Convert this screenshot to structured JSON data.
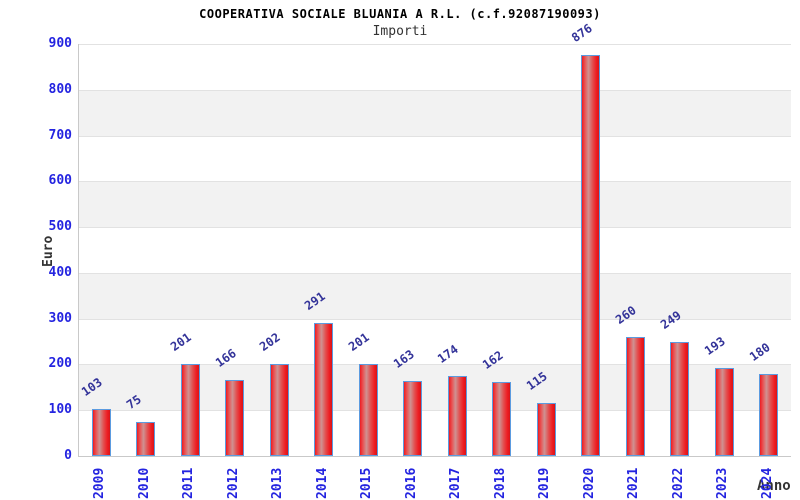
{
  "chart_data": {
    "type": "bar",
    "title": "COOPERATIVA SOCIALE BLUANIA A R.L. (c.f.92087190093)",
    "subtitle": "Importi",
    "xlabel": "Anno",
    "ylabel": "Euro",
    "categories": [
      "2009",
      "2010",
      "2011",
      "2012",
      "2013",
      "2014",
      "2015",
      "2016",
      "2017",
      "2018",
      "2019",
      "2020",
      "2021",
      "2022",
      "2023",
      "2024"
    ],
    "values": [
      103,
      75,
      201,
      166,
      202,
      291,
      201,
      163,
      174,
      162,
      115,
      876,
      260,
      249,
      193,
      180
    ],
    "ylim": [
      0,
      900
    ],
    "ytick_step": 100,
    "grid": true,
    "legend_position": "none",
    "bands": "alternating horizontal white/gray from top"
  },
  "appearance": {
    "tick_label_color": "#2424e0",
    "value_label_color": "#333399",
    "axis_title_color": "#333333",
    "band_gray": "#f2f2f2",
    "band_white": "#ffffff",
    "gridline_color": "#e2e2e2",
    "bar_border_color": "#5b9be0",
    "bar_red_edge": "#ee1c22",
    "bar_red_dark": "#d81418",
    "bar_highlight": "#cf9292",
    "title_color": "#000000"
  }
}
